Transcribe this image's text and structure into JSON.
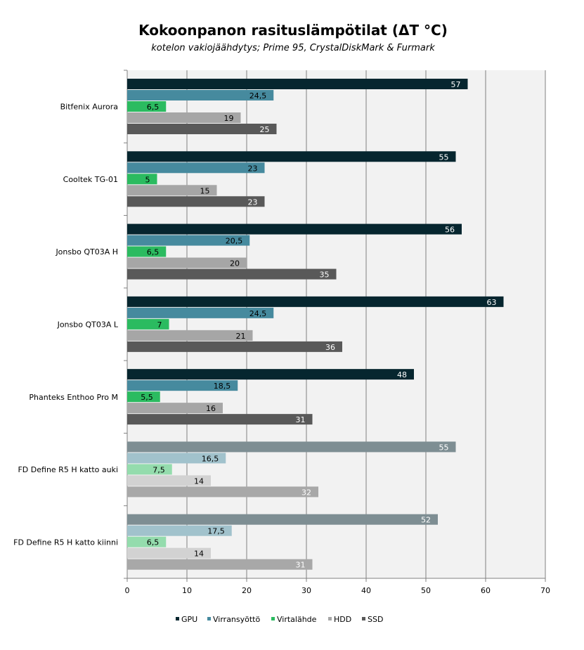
{
  "chart_data": {
    "type": "bar",
    "orientation": "horizontal",
    "title": "Kokoonpanon rasituslämpötilat (ΔT °C)",
    "subtitle": "kotelon vakiojäähdytys;  Prime 95, CrystalDiskMark & Furmark",
    "xlabel": "",
    "ylabel": "",
    "xlim": [
      0,
      70
    ],
    "xticks": [
      "0",
      "10",
      "20",
      "30",
      "40",
      "50",
      "60",
      "70"
    ],
    "grid": true,
    "legend": "bottom",
    "categories": [
      "Bitfenix Aurora",
      "Cooltek TG-01",
      "Jonsbo QT03A H",
      "Jonsbo QT03A L",
      "Phanteks Enthoo Pro M",
      "FD Define R5 H katto auki",
      "FD Define R5 H katto kiinni"
    ],
    "series": [
      {
        "name": "GPU",
        "color": "#06262f",
        "faded_color": "#7e8e93",
        "label_color": "#ffffff",
        "values": [
          57,
          55,
          56,
          63,
          48,
          55,
          52
        ],
        "labels": [
          "57",
          "55",
          "56",
          "63",
          "48",
          "55",
          "52"
        ]
      },
      {
        "name": "Virransyöttö",
        "color": "#468a9e",
        "faded_color": "#a1c2cc",
        "label_color": "#000000",
        "values": [
          24.5,
          23,
          20.5,
          24.5,
          18.5,
          16.5,
          17.5
        ],
        "labels": [
          "24,5",
          "23",
          "20,5",
          "24,5",
          "18,5",
          "16,5",
          "17,5"
        ]
      },
      {
        "name": "Virtalähde",
        "color": "#2bbb60",
        "faded_color": "#94dcad",
        "label_color": "#000000",
        "values": [
          6.5,
          5,
          6.5,
          7,
          5.5,
          7.5,
          6.5
        ],
        "labels": [
          "6,5",
          "5",
          "6,5",
          "7",
          "5,5",
          "7,5",
          "6,5"
        ]
      },
      {
        "name": "HDD",
        "color": "#a6a6a6",
        "faded_color": "#d2d2d2",
        "label_color": "#000000",
        "values": [
          19,
          15,
          20,
          21,
          16,
          14,
          14
        ],
        "labels": [
          "19",
          "15",
          "20",
          "21",
          "16",
          "14",
          "14"
        ]
      },
      {
        "name": "SSD",
        "color": "#595959",
        "faded_color": "#a8a8a8",
        "label_color": "#ffffff",
        "values": [
          25,
          23,
          35,
          36,
          31,
          32,
          31
        ],
        "labels": [
          "25",
          "23",
          "35",
          "36",
          "31",
          "32",
          "31"
        ]
      }
    ],
    "faded_categories": [
      5,
      6
    ],
    "colors": {
      "plot_background": "#f2f2f2",
      "gridline": "#808080",
      "axis": "#808080"
    }
  }
}
